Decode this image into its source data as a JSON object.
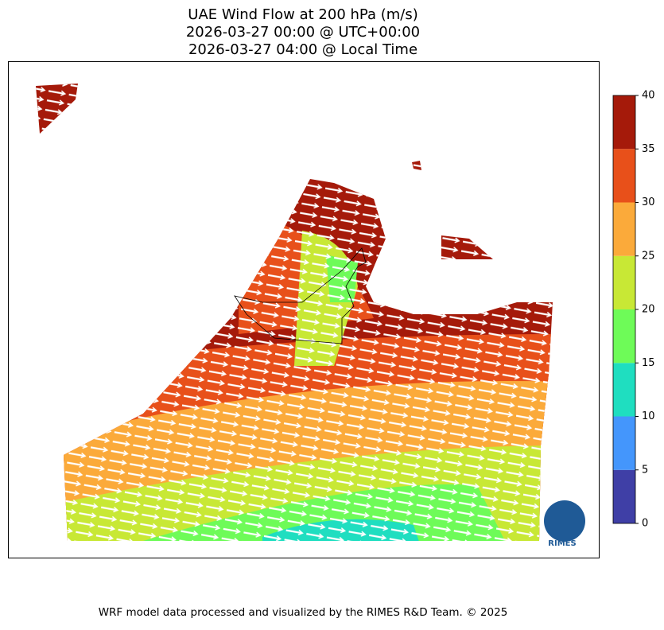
{
  "title": [
    "UAE Wind Flow at 200 hPa (m/s)",
    "2026-03-27 00:00 @ UTC+00:00",
    "2026-03-27 04:00 @ Local Time"
  ],
  "colorbar": {
    "ticks": [
      0,
      5,
      10,
      15,
      20,
      25,
      30,
      35,
      40
    ],
    "colors": [
      "#3f3fa6",
      "#4496fc",
      "#1fdec0",
      "#6efb58",
      "#c8e835",
      "#fbaa3a",
      "#e8501a",
      "#a51a0a"
    ]
  },
  "logo_text": "RIMES",
  "footer": "WRF model data processed and visualized by the RIMES R&D Team. © 2025"
}
